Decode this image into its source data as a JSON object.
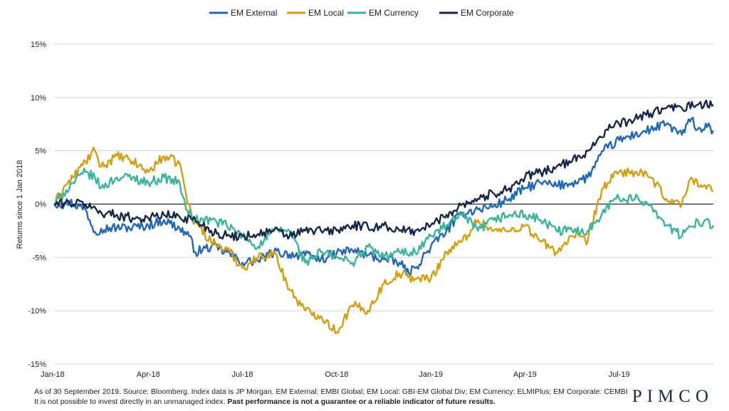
{
  "footnote": {
    "line1": "As of 30 September 2019. Source: Bloomberg. Index data is JP Morgan. EM External: EMBI Global; EM Local: GBI-EM Global Div; EM Currency: ELMIPlus; EM Corporate: CEMBI",
    "line2_normal": "It is not possible to invest directly in an unmanaged index. ",
    "line2_bold": "Past performance is not a guarantee or a reliable indicator of future results."
  },
  "brand": "PIMCO",
  "colors": {
    "em_external": "#2166b7",
    "em_local": "#d39e16",
    "em_currency": "#3cb39a",
    "em_corporate": "#16274a",
    "grid": "#d4d4d4",
    "zero_line": "#000000"
  },
  "chart_data": {
    "type": "line",
    "title": "",
    "xlabel": "",
    "ylabel": "Returns since 1 Jan 2018",
    "xlim": [
      0,
      21
    ],
    "ylim": [
      -15,
      15
    ],
    "yticks": [
      15,
      10,
      5,
      0,
      -5,
      -10,
      -15
    ],
    "ytick_labels": [
      "15%",
      "10%",
      "5%",
      "0%",
      "-5%",
      "-10%",
      "-15%"
    ],
    "xticks": [
      0,
      3,
      6,
      9,
      12,
      15,
      18
    ],
    "xtick_labels": [
      "Jan-18",
      "Apr-18",
      "Jul-18",
      "Oct-18",
      "Jan-19",
      "Apr-19",
      "Jul-19"
    ],
    "grid": "horizontal",
    "legend_position": "top",
    "x_unit": "months since Jan 2018",
    "series": [
      {
        "name": "EM External",
        "color": "#2166b7",
        "x": [
          0,
          0.5,
          1,
          1.3,
          1.5,
          2,
          2.5,
          3,
          3.5,
          4,
          4.3,
          4.5,
          5,
          5.5,
          6,
          6.5,
          7,
          7.5,
          8,
          8.5,
          9,
          9.5,
          10,
          10.5,
          11,
          11.3,
          11.5,
          12,
          12.5,
          13,
          13.5,
          14,
          14.5,
          15,
          15.5,
          16,
          16.5,
          17,
          17.3,
          17.5,
          18,
          18.5,
          19,
          19.5,
          20,
          20.3,
          20.5,
          20.8,
          21
        ],
        "y": [
          0,
          0.2,
          -0.5,
          -2.6,
          -2.3,
          -2.2,
          -2.2,
          -2.0,
          -1.5,
          -2.3,
          -3.0,
          -4.5,
          -4.0,
          -4.5,
          -5.5,
          -5.3,
          -4.5,
          -4.7,
          -4.8,
          -5.2,
          -4.6,
          -4.3,
          -4.8,
          -5.2,
          -5.5,
          -6.5,
          -6.0,
          -4.0,
          -2.5,
          -0.8,
          -0.5,
          -0.2,
          0.5,
          1.5,
          2.0,
          1.7,
          2.0,
          2.5,
          4.0,
          5.0,
          6.0,
          6.5,
          7.0,
          7.5,
          6.5,
          8.0,
          7.0,
          7.2,
          6.9
        ]
      },
      {
        "name": "EM Local",
        "color": "#d39e16",
        "x": [
          0,
          0.3,
          0.6,
          1,
          1.3,
          1.5,
          2,
          2.5,
          3,
          3.5,
          4,
          4.2,
          4.4,
          4.6,
          5,
          5.3,
          5.6,
          6,
          6.5,
          7,
          7.5,
          8,
          8.5,
          9,
          9.5,
          10,
          10.5,
          11,
          11.5,
          12,
          12.5,
          13,
          13.5,
          14,
          14.5,
          15,
          15.5,
          16,
          16.5,
          17,
          17.3,
          17.5,
          17.8,
          18,
          18.5,
          19,
          19.5,
          20,
          20.3,
          20.6,
          21
        ],
        "y": [
          0,
          1.5,
          2.5,
          4.0,
          5.0,
          3.5,
          4.5,
          4.0,
          3.0,
          4.5,
          3.8,
          1.0,
          -1.5,
          -2.0,
          -3.5,
          -4.0,
          -4.5,
          -6.0,
          -5.0,
          -4.5,
          -8.0,
          -10.0,
          -10.5,
          -12.0,
          -9.5,
          -10.0,
          -7.5,
          -6.5,
          -7.0,
          -7.0,
          -4.5,
          -3.5,
          -1.5,
          -2.5,
          -2.5,
          -2.0,
          -3.5,
          -4.5,
          -3.0,
          -3.5,
          0.0,
          1.5,
          2.5,
          3.0,
          3.0,
          2.5,
          0.5,
          0.0,
          2.5,
          1.8,
          1.2
        ]
      },
      {
        "name": "EM Currency",
        "color": "#3cb39a",
        "x": [
          0,
          0.3,
          0.6,
          1,
          1.3,
          1.5,
          2,
          2.5,
          3,
          3.5,
          4,
          4.2,
          4.5,
          5,
          5.5,
          6,
          6.5,
          7,
          7.5,
          8,
          8.5,
          9,
          9.5,
          10,
          10.5,
          11,
          11.5,
          12,
          12.5,
          13,
          13.5,
          14,
          14.5,
          15,
          15.5,
          16,
          16.5,
          17,
          17.3,
          17.5,
          17.8,
          18,
          18.5,
          19,
          19.5,
          20,
          20.5,
          21
        ],
        "y": [
          0,
          1.0,
          2.0,
          3.0,
          2.5,
          1.5,
          2.5,
          2.5,
          2.0,
          2.5,
          2.0,
          -0.5,
          -1.5,
          -1.5,
          -2.0,
          -3.0,
          -4.0,
          -2.5,
          -2.5,
          -5.5,
          -4.5,
          -5.0,
          -5.5,
          -4.0,
          -5.0,
          -4.5,
          -4.5,
          -3.0,
          -2.0,
          -1.0,
          -2.5,
          -1.5,
          -1.0,
          -1.0,
          -1.5,
          -2.5,
          -2.5,
          -2.5,
          -1.5,
          -0.5,
          0.3,
          0.5,
          0.5,
          0.0,
          -2.0,
          -3.0,
          -1.5,
          -2.0
        ]
      },
      {
        "name": "EM Corporate",
        "color": "#16274a",
        "x": [
          0,
          0.5,
          1,
          1.5,
          2,
          2.5,
          3,
          3.5,
          4,
          4.5,
          5,
          5.5,
          6,
          6.5,
          7,
          7.5,
          8,
          8.5,
          9,
          9.5,
          10,
          10.5,
          11,
          11.5,
          12,
          12.5,
          13,
          13.5,
          14,
          14.5,
          15,
          15.5,
          16,
          16.5,
          17,
          17.3,
          17.6,
          18,
          18.5,
          19,
          19.5,
          20,
          20.5,
          21
        ],
        "y": [
          0,
          0.1,
          0.0,
          -0.8,
          -1.0,
          -1.3,
          -1.3,
          -1.0,
          -1.2,
          -1.5,
          -2.5,
          -3.0,
          -3.0,
          -2.8,
          -2.5,
          -3.0,
          -2.5,
          -2.5,
          -2.5,
          -2.0,
          -2.2,
          -2.0,
          -2.5,
          -2.5,
          -2.0,
          -1.0,
          0.0,
          0.5,
          1.0,
          1.5,
          2.5,
          3.0,
          3.5,
          4.0,
          5.0,
          6.0,
          7.0,
          7.5,
          8.0,
          8.5,
          9.0,
          9.0,
          9.3,
          9.3
        ]
      }
    ]
  }
}
